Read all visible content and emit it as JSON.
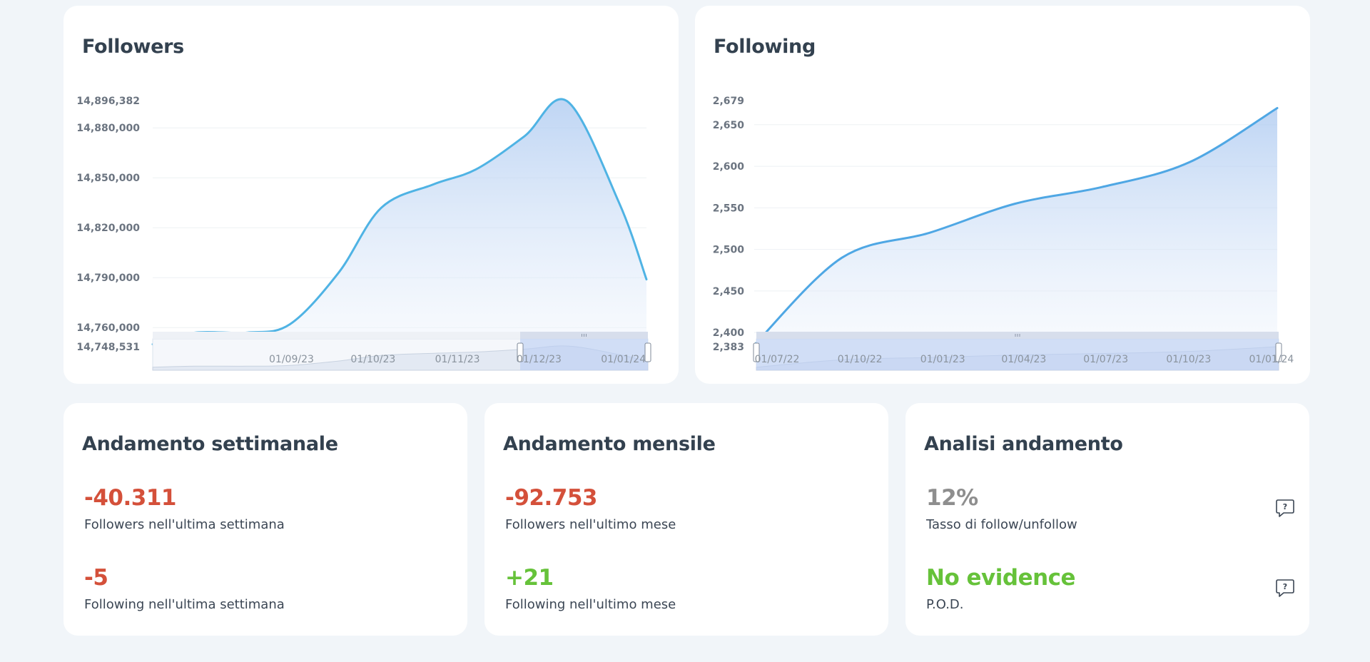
{
  "followers_card": {
    "title": "Followers",
    "chart_data": {
      "type": "area",
      "title": "Followers",
      "x": [
        "01/08/23",
        "15/08/23",
        "01/09/23",
        "15/09/23",
        "01/10/23",
        "15/10/23",
        "01/11/23",
        "15/11/23",
        "01/12/23",
        "15/12/23",
        "01/01/24",
        "10/01/24"
      ],
      "y": [
        14750000,
        14757000,
        14757000,
        14762000,
        14793000,
        14832000,
        14846000,
        14855000,
        14875000,
        14896000,
        14835000,
        14789000
      ],
      "ylim": [
        14748531,
        14896382
      ],
      "ytick_labels": [
        "14,896,382",
        "14,880,000",
        "14,850,000",
        "14,820,000",
        "14,790,000",
        "14,760,000",
        "14,748,531"
      ],
      "navigator_labels": [
        "01/09/23",
        "01/10/23",
        "01/11/23",
        "01/12/23",
        "01/01/24"
      ],
      "color": "#4fb3e4",
      "grid": true
    }
  },
  "following_card": {
    "title": "Following",
    "chart_data": {
      "type": "area",
      "title": "Following",
      "x": [
        "01/07/22",
        "01/10/22",
        "01/01/23",
        "01/04/23",
        "01/07/23",
        "01/10/23",
        "01/01/24"
      ],
      "y": [
        2385,
        2490,
        2520,
        2555,
        2575,
        2605,
        2670
      ],
      "ylim": [
        2383,
        2679
      ],
      "ytick_labels": [
        "2,679",
        "2,650",
        "2,600",
        "2,550",
        "2,500",
        "2,450",
        "2,400",
        "2,383"
      ],
      "navigator_labels": [
        "01/07/22",
        "01/10/22",
        "01/01/23",
        "01/04/23",
        "01/07/23",
        "01/10/23",
        "01/01/24"
      ],
      "color": "#4fa7e4",
      "grid": true
    }
  },
  "weekly": {
    "title": "Andamento settimanale",
    "followers_value": "-40.311",
    "followers_label": "Followers nell'ultima settimana",
    "following_value": "-5",
    "following_label": "Following nell'ultima settimana"
  },
  "monthly": {
    "title": "Andamento mensile",
    "followers_value": "-92.753",
    "followers_label": "Followers nell'ultimo mese",
    "following_value": "+21",
    "following_label": "Following nell'ultimo mese"
  },
  "analysis": {
    "title": "Analisi andamento",
    "rate_value": "12%",
    "rate_label": "Tasso di follow/unfollow",
    "pod_value": "No evidence",
    "pod_label": "P.O.D.",
    "help_icon_glyph": "?"
  },
  "colors": {
    "negative": "#d4503a",
    "positive": "#66c23a",
    "neutral": "#8e8e8e"
  }
}
